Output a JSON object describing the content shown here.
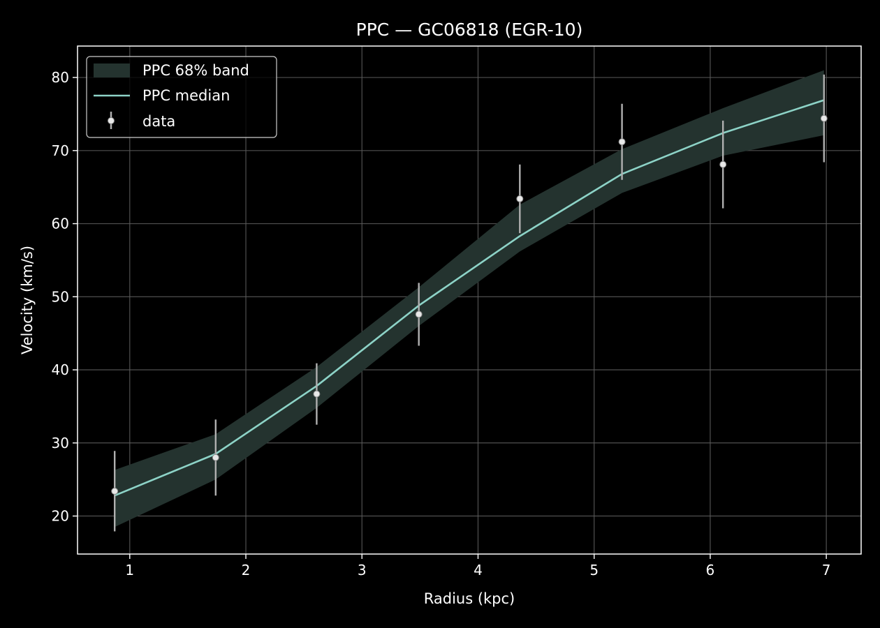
{
  "chart_data": {
    "type": "line",
    "title": "PPC — GC06818 (EGR-10)",
    "xlabel": "Radius (kpc)",
    "ylabel": "Velocity (km/s)",
    "xlim": [
      0.55,
      7.3
    ],
    "ylim": [
      14.8,
      84.3
    ],
    "xticks": [
      1,
      2,
      3,
      4,
      5,
      6,
      7
    ],
    "yticks": [
      20,
      30,
      40,
      50,
      60,
      70,
      80
    ],
    "grid": true,
    "legend_position": "upper-left",
    "legend": {
      "band": "PPC 68% band",
      "median": "PPC median",
      "data": "data"
    },
    "colors": {
      "background": "#000000",
      "band": "#24332f",
      "median": "#8dd3c7",
      "data_point": "#e8e8e8",
      "error_bar": "#b0b0b0",
      "grid": "#5a5a5a",
      "axes": "#ffffff"
    },
    "x": [
      0.87,
      1.74,
      2.61,
      3.49,
      4.36,
      5.24,
      6.11,
      6.98
    ],
    "series": [
      {
        "name": "PPC median",
        "values": [
          22.8,
          28.5,
          37.8,
          48.8,
          58.3,
          66.8,
          72.4,
          76.9
        ]
      },
      {
        "name": "PPC 68% band lower",
        "values": [
          18.5,
          25.0,
          34.8,
          46.0,
          56.2,
          64.2,
          69.3,
          72.1
        ]
      },
      {
        "name": "PPC 68% band upper",
        "values": [
          26.3,
          31.2,
          40.4,
          51.3,
          62.6,
          70.2,
          75.8,
          81.0
        ]
      },
      {
        "name": "data",
        "values": [
          23.4,
          28.0,
          36.7,
          47.6,
          63.4,
          71.2,
          68.1,
          74.4
        ]
      },
      {
        "name": "data error",
        "values": [
          5.5,
          5.2,
          4.2,
          4.3,
          4.7,
          5.2,
          6.0,
          6.0
        ]
      }
    ]
  }
}
